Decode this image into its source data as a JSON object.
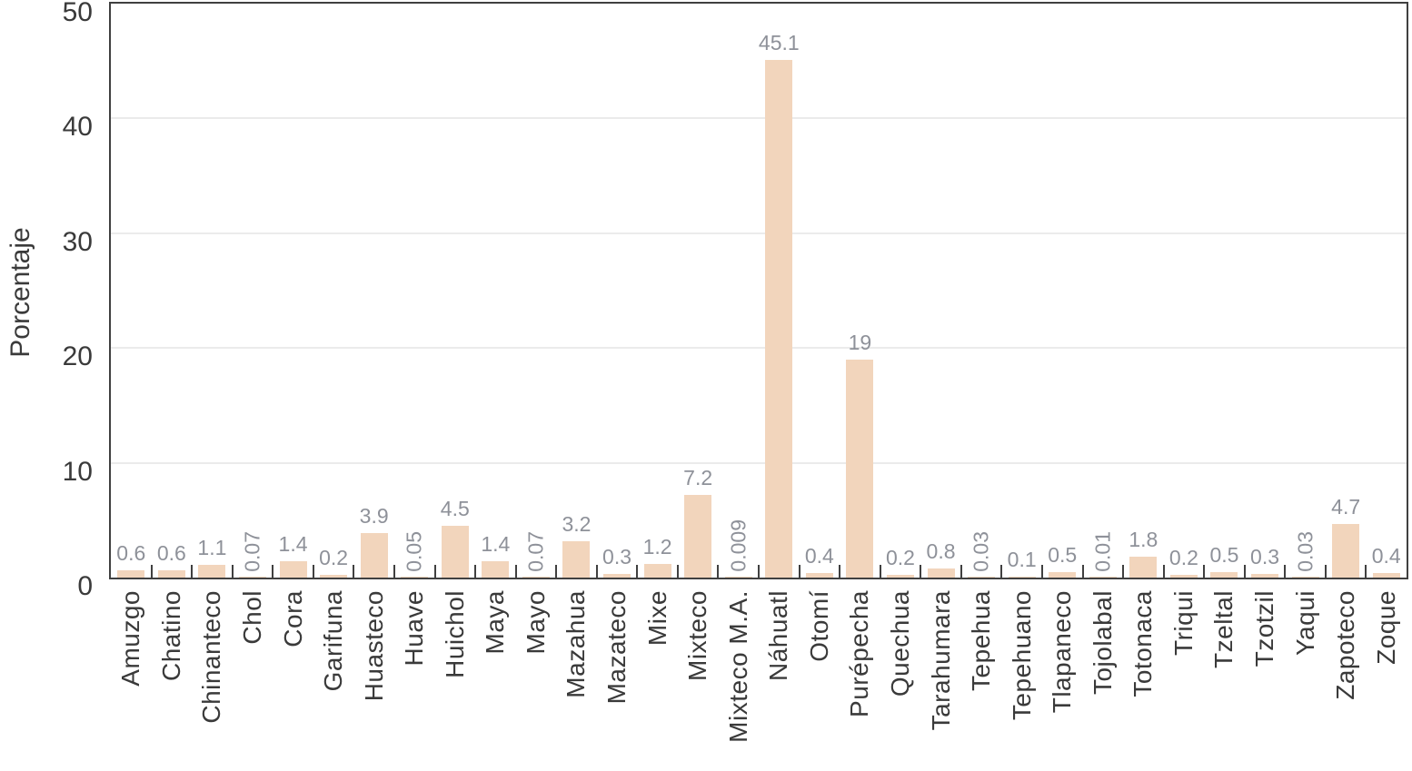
{
  "chart_data": {
    "type": "bar",
    "title": "",
    "xlabel": "",
    "ylabel": "Porcentaje",
    "ylim": [
      0,
      50
    ],
    "yticks": [
      0,
      10,
      20,
      30,
      40,
      50
    ],
    "grid": "horizontal",
    "legend": "none",
    "categories": [
      "Amuzgo",
      "Chatino",
      "Chinanteco",
      "Chol",
      "Cora",
      "Garifuna",
      "Huasteco",
      "Huave",
      "Huichol",
      "Maya",
      "Mayo",
      "Mazahua",
      "Mazateco",
      "Mixe",
      "Mixteco",
      "Mixteco M.A.",
      "Náhuatl",
      "Otomí",
      "Purépecha",
      "Quechua",
      "Tarahumara",
      "Tepehua",
      "Tepehuano",
      "Tlapaneco",
      "Tojolabal",
      "Totonaca",
      "Triqui",
      "Tzeltal",
      "Tzotzil",
      "Yaqui",
      "Zapoteco",
      "Zoque"
    ],
    "values": [
      0.6,
      0.6,
      1.1,
      0.07,
      1.4,
      0.2,
      3.9,
      0.05,
      4.5,
      1.4,
      0.07,
      3.2,
      0.3,
      1.2,
      7.2,
      0.009,
      45.1,
      0.4,
      19,
      0.2,
      0.8,
      0.03,
      0.1,
      0.5,
      0.01,
      1.8,
      0.2,
      0.5,
      0.3,
      0.03,
      4.7,
      0.4
    ],
    "value_labels": [
      "0.6",
      "0.6",
      "1.1",
      "0.07",
      "1.4",
      "0.2",
      "3.9",
      "0.05",
      "4.5",
      "1.4",
      "0.07",
      "3.2",
      "0.3",
      "1.2",
      "7.2",
      "0.009",
      "45.1",
      "0.4",
      "19",
      "0.2",
      "0.8",
      "0.03",
      "0.1",
      "0.5",
      "0.01",
      "1.8",
      "0.2",
      "0.5",
      "0.3",
      "0.03",
      "4.7",
      "0.4"
    ]
  },
  "colors": {
    "bar": "#f2d5bc",
    "value_label": "#8e9199",
    "axis_text": "#3a3a3a",
    "plot_border": "#404040",
    "gridline": "#ebebeb",
    "background": "#ffffff"
  }
}
